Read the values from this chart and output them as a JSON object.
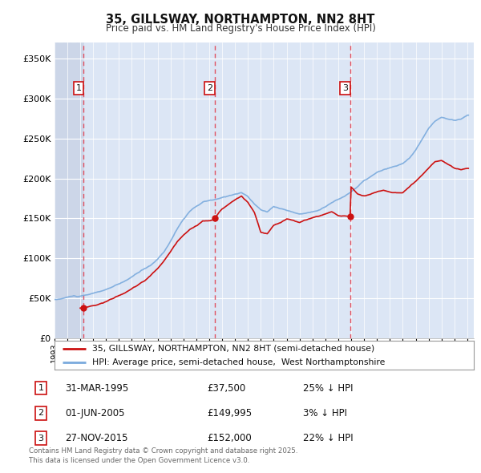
{
  "title": "35, GILLSWAY, NORTHAMPTON, NN2 8HT",
  "subtitle": "Price paid vs. HM Land Registry's House Price Index (HPI)",
  "ylim": [
    0,
    370000
  ],
  "yticks": [
    0,
    50000,
    100000,
    150000,
    200000,
    250000,
    300000,
    350000
  ],
  "ytick_labels": [
    "£0",
    "£50K",
    "£100K",
    "£150K",
    "£200K",
    "£250K",
    "£300K",
    "£350K"
  ],
  "background_color": "#ffffff",
  "plot_bg_color": "#dce6f5",
  "grid_color": "#ffffff",
  "transactions": [
    {
      "date_num": 1995.24,
      "price": 37500,
      "label": "1"
    },
    {
      "date_num": 2005.42,
      "price": 149995,
      "label": "2"
    },
    {
      "date_num": 2015.91,
      "price": 152000,
      "label": "3"
    }
  ],
  "vline_color": "#e05060",
  "red_line_color": "#cc1111",
  "blue_line_color": "#7aaadd",
  "legend_red_label": "35, GILLSWAY, NORTHAMPTON, NN2 8HT (semi-detached house)",
  "legend_blue_label": "HPI: Average price, semi-detached house,  West Northamptonshire",
  "table_rows": [
    {
      "num": "1",
      "date": "31-MAR-1995",
      "price": "£37,500",
      "pct": "25% ↓ HPI"
    },
    {
      "num": "2",
      "date": "01-JUN-2005",
      "price": "£149,995",
      "pct": "3% ↓ HPI"
    },
    {
      "num": "3",
      "date": "27-NOV-2015",
      "price": "£152,000",
      "pct": "22% ↓ HPI"
    }
  ],
  "footnote": "Contains HM Land Registry data © Crown copyright and database right 2025.\nThis data is licensed under the Open Government Licence v3.0.",
  "xlim_start": 1993.0,
  "xlim_end": 2025.5
}
